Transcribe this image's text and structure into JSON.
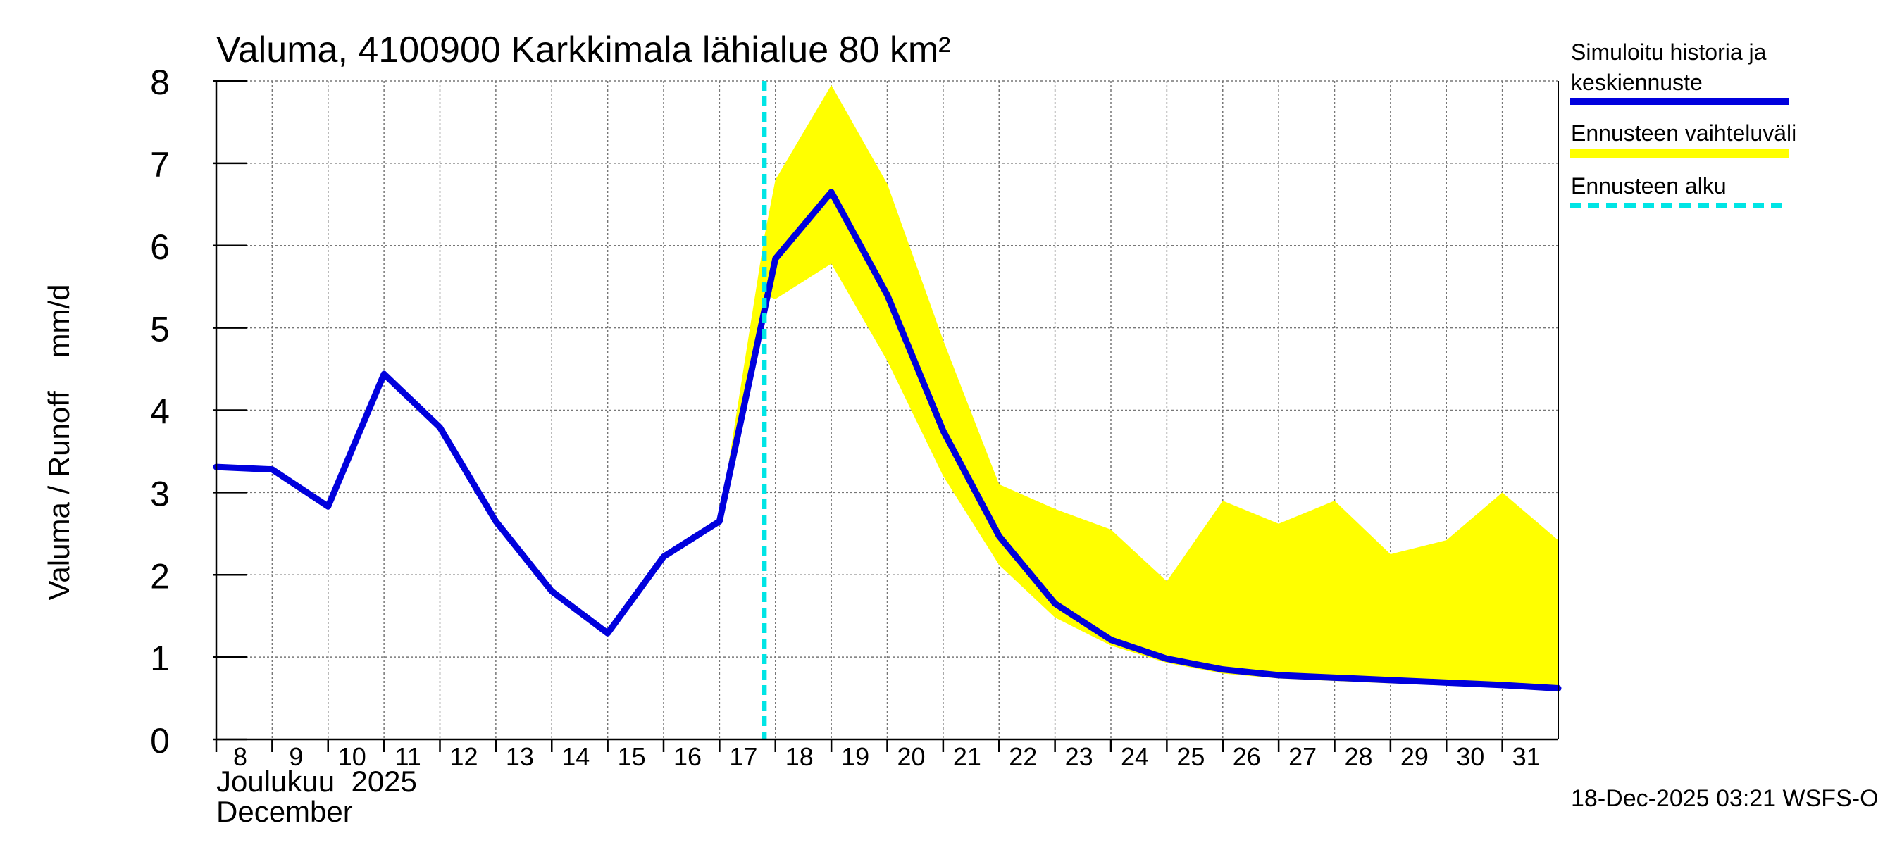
{
  "chart_data": {
    "type": "line",
    "title": "Valuma, 4100900 Karkkimala lähialue 80 km²",
    "ylabel": "Valuma / Runoff    mm/d",
    "xlabel_line1": "Joulukuu  2025",
    "xlabel_line2": "December",
    "ylim": [
      0,
      8
    ],
    "yticks": [
      "0",
      "1",
      "2",
      "3",
      "4",
      "5",
      "6",
      "7",
      "8"
    ],
    "xlim": [
      8,
      32
    ],
    "xtick_labels": [
      "8",
      "9",
      "10",
      "11",
      "12",
      "13",
      "14",
      "15",
      "16",
      "17",
      "18",
      "19",
      "20",
      "21",
      "22",
      "23",
      "24",
      "25",
      "26",
      "27",
      "28",
      "29",
      "30",
      "31"
    ],
    "forecast_start": 17.8,
    "series": [
      {
        "name": "Simuloitu historia ja keskiennuste",
        "color": "#0000dd",
        "x": [
          8,
          9,
          10,
          11,
          12,
          13,
          14,
          15,
          16,
          17,
          18,
          19,
          20,
          21,
          22,
          23,
          24,
          25,
          26,
          27,
          28,
          29,
          30,
          31,
          32
        ],
        "values": [
          3.31,
          3.28,
          2.83,
          4.44,
          3.79,
          2.65,
          1.8,
          1.29,
          2.22,
          2.65,
          5.84,
          6.65,
          5.4,
          3.75,
          2.47,
          1.65,
          1.21,
          0.98,
          0.85,
          0.78,
          0.75,
          0.72,
          0.69,
          0.66,
          0.62
        ]
      }
    ],
    "band": {
      "name": "Ennusteen vaihteluväli",
      "color": "#ffff00",
      "x": [
        17,
        17.8,
        18,
        19,
        20,
        21,
        22,
        23,
        24,
        25,
        26,
        27,
        28,
        29,
        30,
        31,
        32
      ],
      "upper": [
        2.65,
        6.1,
        6.8,
        7.95,
        6.75,
        4.85,
        3.1,
        2.8,
        2.55,
        1.92,
        2.9,
        2.62,
        2.9,
        2.25,
        2.42,
        3.0,
        2.42
      ],
      "lower": [
        2.65,
        5.4,
        5.35,
        5.78,
        4.6,
        3.2,
        2.12,
        1.48,
        1.14,
        0.93,
        0.8,
        0.74,
        0.71,
        0.68,
        0.66,
        0.63,
        0.58
      ]
    },
    "legend": [
      {
        "label_line1": "Simuloitu historia ja",
        "label_line2": "keskiennuste",
        "color": "#0000dd",
        "style": "solid"
      },
      {
        "label_line1": "Ennusteen vaihteluväli",
        "label_line2": "",
        "color": "#ffff00",
        "style": "solid"
      },
      {
        "label_line1": "Ennusteen alku",
        "label_line2": "",
        "color": "#00e5e5",
        "style": "dashed"
      }
    ],
    "legend_position": "right",
    "grid": true,
    "footer": "18-Dec-2025 03:21 WSFS-O"
  }
}
